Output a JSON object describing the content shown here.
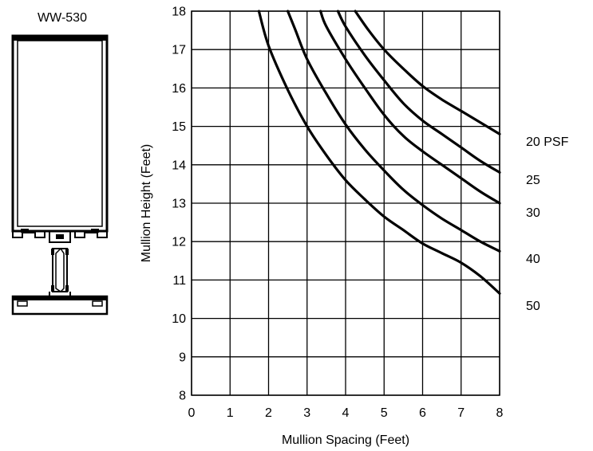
{
  "profile": {
    "title": "WW-530"
  },
  "chart_data": {
    "type": "line",
    "title": "",
    "xlabel": "Mullion Spacing (Feet)",
    "ylabel": "Mullion Height (Feet)",
    "xlim": [
      0,
      8
    ],
    "ylim": [
      8,
      18
    ],
    "xticks": [
      0,
      1,
      2,
      3,
      4,
      5,
      6,
      7,
      8
    ],
    "yticks": [
      8,
      9,
      10,
      11,
      12,
      13,
      14,
      15,
      16,
      17,
      18
    ],
    "grid": true,
    "legend": "right",
    "series": [
      {
        "name": "20 PSF",
        "x": [
          4.25,
          4.6,
          5.0,
          5.5,
          6.0,
          6.5,
          7.0,
          7.5,
          8.0
        ],
        "y": [
          18.0,
          17.5,
          17.0,
          16.5,
          16.05,
          15.7,
          15.4,
          15.1,
          14.8
        ]
      },
      {
        "name": "25",
        "x": [
          3.8,
          4.0,
          4.5,
          5.0,
          5.5,
          6.0,
          6.5,
          7.0,
          7.5,
          8.0
        ],
        "y": [
          18.0,
          17.6,
          16.85,
          16.2,
          15.6,
          15.15,
          14.8,
          14.45,
          14.1,
          13.8
        ]
      },
      {
        "name": "30",
        "x": [
          3.35,
          3.5,
          4.0,
          4.5,
          5.0,
          5.5,
          6.0,
          6.5,
          7.0,
          7.5,
          8.0
        ],
        "y": [
          18.0,
          17.6,
          16.75,
          16.0,
          15.3,
          14.75,
          14.35,
          14.0,
          13.65,
          13.3,
          13.0
        ]
      },
      {
        "name": "40",
        "x": [
          2.5,
          2.7,
          3.0,
          3.5,
          4.0,
          4.5,
          5.0,
          5.5,
          6.0,
          6.5,
          7.0,
          7.5,
          8.0
        ],
        "y": [
          18.0,
          17.5,
          16.75,
          15.85,
          15.05,
          14.4,
          13.85,
          13.35,
          12.95,
          12.6,
          12.3,
          12.0,
          11.75
        ]
      },
      {
        "name": "50",
        "x": [
          1.75,
          2.0,
          2.5,
          3.0,
          3.5,
          4.0,
          4.5,
          5.0,
          5.5,
          6.0,
          6.5,
          7.0,
          7.5,
          8.0
        ],
        "y": [
          18.0,
          17.1,
          15.95,
          15.0,
          14.25,
          13.6,
          13.1,
          12.65,
          12.3,
          11.95,
          11.7,
          11.45,
          11.1,
          10.65
        ]
      }
    ]
  },
  "style": {
    "line_color": "#000000",
    "grid_color": "#000000",
    "profile_color": "#000000"
  }
}
